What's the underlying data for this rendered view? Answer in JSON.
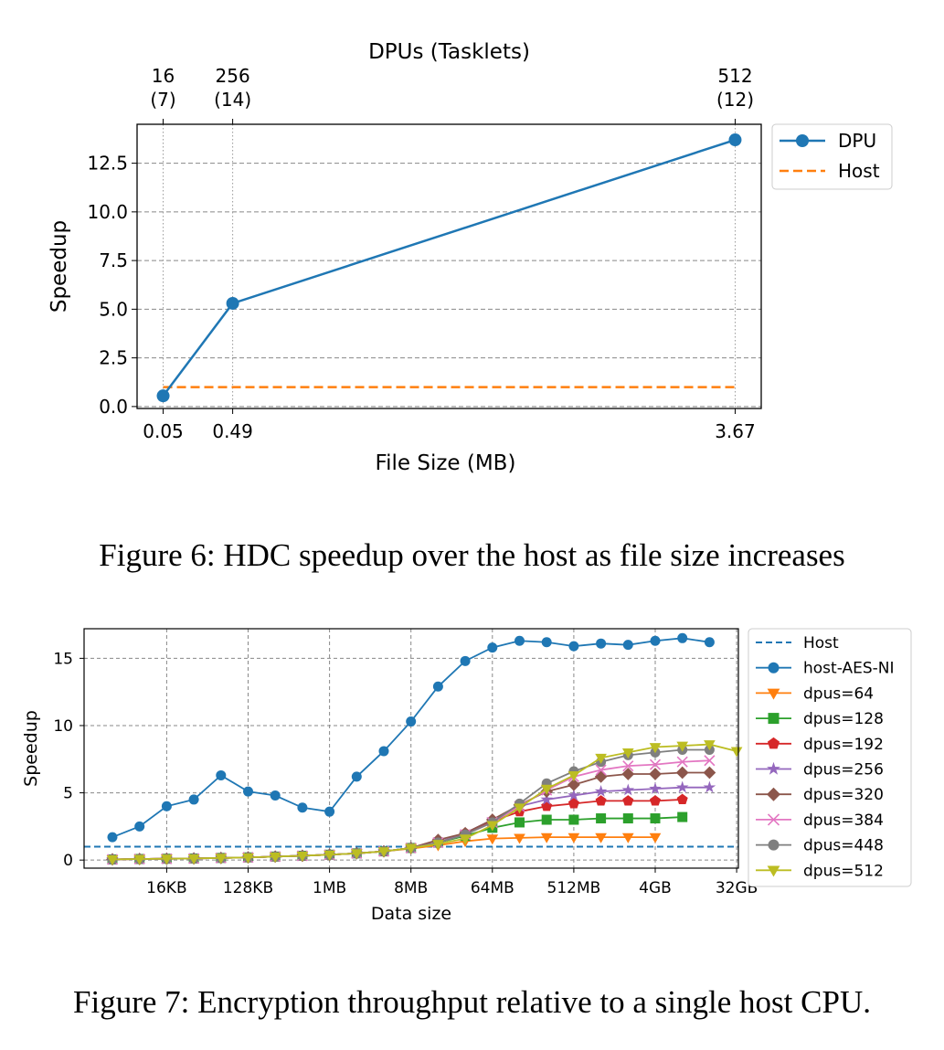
{
  "figures": [
    {
      "caption": "Figure 6: HDC speedup over the host as file size increases"
    },
    {
      "caption": "Figure 7: Encryption throughput relative to a single host CPU."
    }
  ],
  "chart_data": [
    {
      "type": "line",
      "title": "",
      "top_axis_label": "DPUs (Tasklets)",
      "top_ticks": [
        {
          "x": 0.05,
          "dpus": "16",
          "tasklets": "(7)"
        },
        {
          "x": 0.49,
          "dpus": "256",
          "tasklets": "(14)"
        },
        {
          "x": 3.67,
          "dpus": "512",
          "tasklets": "(12)"
        }
      ],
      "xlabel": "File Size (MB)",
      "ylabel": "Speedup",
      "xlim": [
        -0.115,
        3.835
      ],
      "ylim": [
        -0.1,
        14.5
      ],
      "x_ticks": [
        0.05,
        0.49,
        3.67
      ],
      "x_tick_labels": [
        "0.05",
        "0.49",
        "3.67"
      ],
      "y_ticks": [
        0,
        2.5,
        5,
        7.5,
        10,
        12.5
      ],
      "y_tick_labels": [
        "0.0",
        "2.5",
        "5.0",
        "7.5",
        "10.0",
        "12.5"
      ],
      "grid": "horizontal dashed, vertical dotted at data points",
      "legend_position": "outside-right-top",
      "series": [
        {
          "name": "DPU",
          "color": "#1f77b4",
          "style": "solid",
          "marker": "circle",
          "x": [
            0.05,
            0.49,
            3.67
          ],
          "y": [
            0.55,
            5.3,
            13.7
          ]
        },
        {
          "name": "Host",
          "color": "#ff7f0e",
          "style": "dashed",
          "marker": "none",
          "x": [
            0.05,
            3.67
          ],
          "y": [
            1.0,
            1.0
          ]
        }
      ]
    },
    {
      "type": "line",
      "title": "",
      "xlabel": "Data size",
      "ylabel": "Speedup",
      "x_scale": "log2",
      "x_categories": [
        "4KB",
        "8KB",
        "16KB",
        "32KB",
        "64KB",
        "128KB",
        "256KB",
        "512KB",
        "1MB",
        "2MB",
        "4MB",
        "8MB",
        "16MB",
        "32MB",
        "64MB",
        "128MB",
        "256MB",
        "512MB",
        "1GB",
        "2GB",
        "4GB",
        "8GB",
        "16GB",
        "32GB"
      ],
      "x_tick_labels": [
        "16KB",
        "128KB",
        "1MB",
        "8MB",
        "64MB",
        "512MB",
        "4GB",
        "32GB"
      ],
      "y_ticks": [
        0,
        5,
        10,
        15
      ],
      "y_tick_labels": [
        "0",
        "5",
        "10",
        "15"
      ],
      "ylim": [
        -0.6,
        17.2
      ],
      "grid": "dashed both axes",
      "legend_position": "outside-right-top",
      "host_line": {
        "name": "Host",
        "color": "#1f77b4",
        "style": "dashed",
        "value": 1.0
      },
      "series": [
        {
          "name": "host-AES-NI",
          "color": "#1f77b4",
          "marker": "circle",
          "values": [
            1.7,
            2.5,
            4.0,
            4.5,
            6.3,
            5.1,
            4.8,
            3.9,
            3.6,
            6.2,
            8.1,
            10.3,
            12.9,
            14.8,
            15.8,
            16.3,
            16.2,
            15.9,
            16.1,
            16.0,
            16.3,
            16.5,
            16.2
          ]
        },
        {
          "name": "dpus=64",
          "color": "#ff7f0e",
          "marker": "triangle-down",
          "values": [
            0.05,
            0.08,
            0.1,
            0.12,
            0.16,
            0.2,
            0.26,
            0.32,
            0.4,
            0.5,
            0.65,
            0.85,
            1.1,
            1.4,
            1.6,
            1.65,
            1.7,
            1.7,
            1.7,
            1.7,
            1.7
          ]
        },
        {
          "name": "dpus=128",
          "color": "#2ca02c",
          "marker": "square",
          "values": [
            0.05,
            0.08,
            0.1,
            0.12,
            0.16,
            0.2,
            0.26,
            0.32,
            0.4,
            0.5,
            0.65,
            0.9,
            1.3,
            1.8,
            2.4,
            2.8,
            3.0,
            3.0,
            3.1,
            3.1,
            3.1,
            3.2
          ]
        },
        {
          "name": "dpus=192",
          "color": "#d62728",
          "marker": "pentagon",
          "values": [
            0.05,
            0.08,
            0.1,
            0.12,
            0.16,
            0.2,
            0.26,
            0.32,
            0.4,
            0.5,
            0.65,
            0.9,
            1.3,
            2.0,
            2.9,
            3.6,
            4.0,
            4.2,
            4.4,
            4.4,
            4.4,
            4.5
          ]
        },
        {
          "name": "dpus=256",
          "color": "#9467bd",
          "marker": "star",
          "values": [
            0.05,
            0.08,
            0.1,
            0.12,
            0.16,
            0.2,
            0.26,
            0.32,
            0.4,
            0.5,
            0.65,
            0.9,
            1.3,
            2.0,
            3.0,
            4.0,
            4.5,
            4.8,
            5.1,
            5.2,
            5.3,
            5.4,
            5.4
          ]
        },
        {
          "name": "dpus=320",
          "color": "#8c564b",
          "marker": "diamond",
          "values": [
            0.05,
            0.08,
            0.1,
            0.12,
            0.16,
            0.2,
            0.26,
            0.32,
            0.4,
            0.5,
            0.65,
            0.9,
            1.5,
            2.0,
            3.0,
            4.1,
            5.1,
            5.6,
            6.2,
            6.4,
            6.4,
            6.5,
            6.5
          ]
        },
        {
          "name": "dpus=384",
          "color": "#e377c2",
          "marker": "x",
          "values": [
            0.05,
            0.08,
            0.1,
            0.12,
            0.16,
            0.2,
            0.26,
            0.32,
            0.4,
            0.5,
            0.65,
            0.9,
            1.3,
            1.9,
            2.8,
            4.0,
            5.2,
            6.2,
            6.7,
            7.0,
            7.1,
            7.3,
            7.4
          ]
        },
        {
          "name": "dpus=448",
          "color": "#7f7f7f",
          "marker": "circle",
          "values": [
            0.05,
            0.08,
            0.1,
            0.12,
            0.16,
            0.2,
            0.26,
            0.32,
            0.4,
            0.5,
            0.65,
            0.9,
            1.3,
            1.9,
            2.8,
            4.2,
            5.7,
            6.6,
            7.3,
            7.8,
            8.0,
            8.2,
            8.2
          ]
        },
        {
          "name": "dpus=512",
          "color": "#bcbd22",
          "marker": "triangle-down",
          "values": [
            0.05,
            0.08,
            0.1,
            0.12,
            0.16,
            0.2,
            0.26,
            0.32,
            0.4,
            0.5,
            0.65,
            0.9,
            1.2,
            1.6,
            2.6,
            3.9,
            5.3,
            6.3,
            7.6,
            8.0,
            8.4,
            8.5,
            8.6,
            8.1
          ]
        }
      ]
    }
  ]
}
